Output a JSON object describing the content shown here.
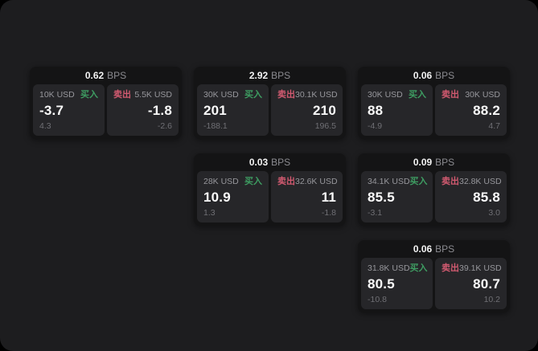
{
  "labels": {
    "bps": "BPS",
    "buy": "买入",
    "sell": "卖出"
  },
  "colors": {
    "buy": "#3e9d62",
    "sell": "#d15a70",
    "page_bg": "#1d1d1f",
    "card_bg": "#141415",
    "panel_bg": "#262629"
  },
  "columns": [
    {
      "cards": [
        {
          "bps": "0.62",
          "buy": {
            "amount": "10K USD",
            "value": "-3.7",
            "delta": "4.3"
          },
          "sell": {
            "amount": "5.5K USD",
            "value": "-1.8",
            "delta": "-2.6"
          }
        }
      ]
    },
    {
      "cards": [
        {
          "bps": "2.92",
          "buy": {
            "amount": "30K USD",
            "value": "201",
            "delta": "-188.1"
          },
          "sell": {
            "amount": "30.1K USD",
            "value": "210",
            "delta": "196.5"
          }
        },
        {
          "bps": "0.03",
          "buy": {
            "amount": "28K USD",
            "value": "10.9",
            "delta": "1.3"
          },
          "sell": {
            "amount": "32.6K USD",
            "value": "11",
            "delta": "-1.8"
          }
        }
      ]
    },
    {
      "cards": [
        {
          "bps": "0.06",
          "buy": {
            "amount": "30K USD",
            "value": "88",
            "delta": "-4.9"
          },
          "sell": {
            "amount": "30K USD",
            "value": "88.2",
            "delta": "4.7"
          }
        },
        {
          "bps": "0.09",
          "buy": {
            "amount": "34.1K USD",
            "value": "85.5",
            "delta": "-3.1"
          },
          "sell": {
            "amount": "32.8K USD",
            "value": "85.8",
            "delta": "3.0"
          }
        },
        {
          "bps": "0.06",
          "buy": {
            "amount": "31.8K USD",
            "value": "80.5",
            "delta": "-10.8"
          },
          "sell": {
            "amount": "39.1K USD",
            "value": "80.7",
            "delta": "10.2"
          }
        }
      ]
    }
  ]
}
